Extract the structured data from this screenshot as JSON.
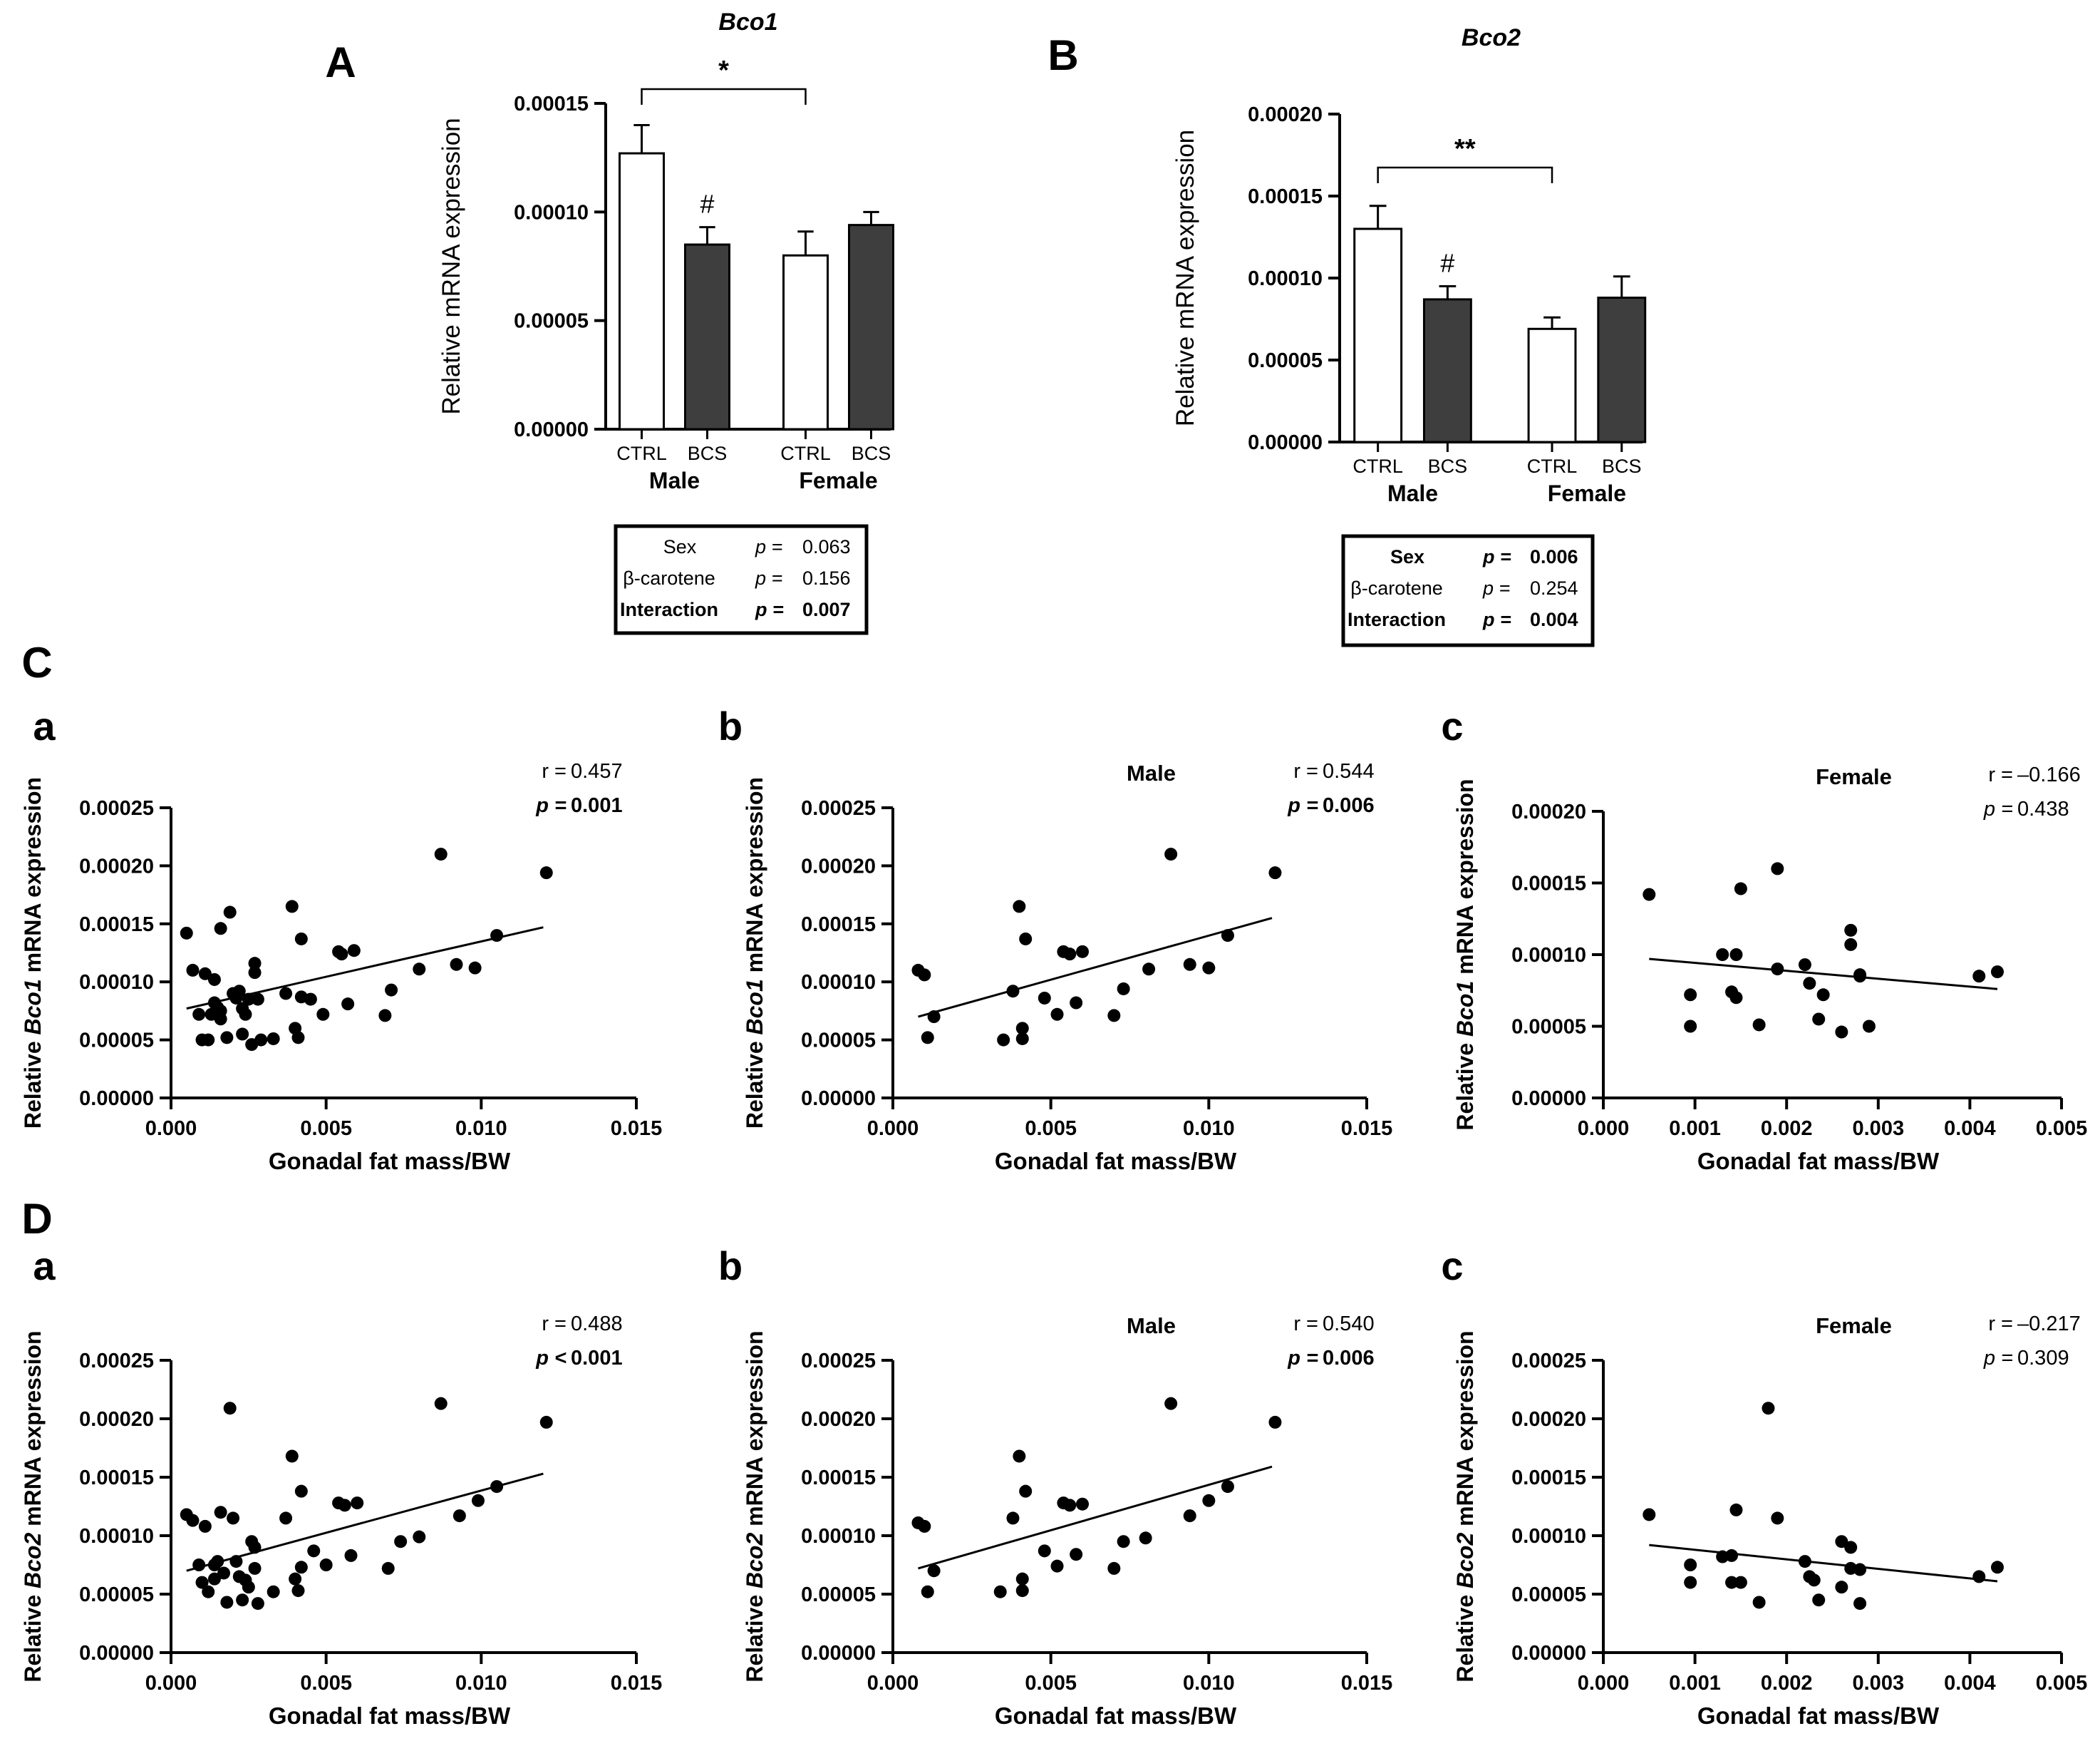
{
  "panel_letters": {
    "A": "A",
    "B": "B",
    "C": "C",
    "D": "D"
  },
  "chart_data": [
    {
      "panel": "A",
      "type": "bar",
      "title": "Bco1",
      "ylabel": "Relative mRNA expression",
      "ylim": [
        0,
        0.00015
      ],
      "yticks": [
        "0.00000",
        "0.00005",
        "0.00010",
        "0.00015"
      ],
      "categories": [
        "CTRL",
        "BCS",
        "CTRL",
        "BCS"
      ],
      "groups": [
        "Male",
        "Female"
      ],
      "values": [
        0.000127,
        8.5e-05,
        8e-05,
        9.4e-05
      ],
      "errors": [
        1.3e-05,
        8e-06,
        1.1e-05,
        6e-06
      ],
      "fills": [
        "white",
        "dark",
        "white",
        "dark"
      ],
      "sig_bracket": {
        "from": 0,
        "to": 2,
        "label": "*"
      },
      "markers": [
        {
          "bar": 1,
          "label": "#"
        }
      ],
      "stats": [
        {
          "label": "Sex",
          "p": "p = ",
          "value": "0.063",
          "bold": false
        },
        {
          "label": "β-carotene",
          "p": "p = ",
          "value": "0.156",
          "bold": false
        },
        {
          "label": "Interaction",
          "p": "p = ",
          "value": "0.007",
          "bold": true
        }
      ]
    },
    {
      "panel": "B",
      "type": "bar",
      "title": "Bco2",
      "ylabel": "Relative mRNA expression",
      "ylim": [
        0,
        0.0002
      ],
      "yticks": [
        "0.00000",
        "0.00005",
        "0.00010",
        "0.00015",
        "0.00020"
      ],
      "categories": [
        "CTRL",
        "BCS",
        "CTRL",
        "BCS"
      ],
      "groups": [
        "Male",
        "Female"
      ],
      "values": [
        0.00013,
        8.7e-05,
        6.9e-05,
        8.8e-05
      ],
      "errors": [
        1.4e-05,
        8e-06,
        7e-06,
        1.3e-05
      ],
      "fills": [
        "white",
        "dark",
        "white",
        "dark"
      ],
      "sig_bracket": {
        "from": 0,
        "to": 2,
        "label": "**"
      },
      "markers": [
        {
          "bar": 1,
          "label": "#"
        }
      ],
      "stats": [
        {
          "label": "Sex",
          "p": "p = ",
          "value": "0.006",
          "bold": true
        },
        {
          "label": "β-carotene",
          "p": "p = ",
          "value": "0.254",
          "bold": false
        },
        {
          "label": "Interaction",
          "p": "p = ",
          "value": "0.004",
          "bold": true
        }
      ]
    },
    {
      "panel": "C-a",
      "type": "scatter",
      "gene": "Bco1",
      "title": "",
      "ylabel_prefix": "Relative ",
      "ylabel_suffix": " mRNA expression",
      "xlabel": "Gonadal fat mass/BW",
      "xlim": [
        0,
        0.015
      ],
      "ylim": [
        0,
        0.00025
      ],
      "xticks": [
        "0.000",
        "0.005",
        "0.010",
        "0.015"
      ],
      "yticks": [
        "0.00000",
        "0.00005",
        "0.00010",
        "0.00015",
        "0.00020",
        "0.00025"
      ],
      "r_label": "r = ",
      "r": "0.457",
      "p_label": "p = ",
      "p": "0.001",
      "p_bold": true,
      "fit": {
        "x": [
          0.0005,
          0.012
        ],
        "y": [
          7.7e-05,
          0.000147
        ]
      },
      "points": [
        [
          0.0005,
          0.000142
        ],
        [
          0.0007,
          0.00011
        ],
        [
          0.0009,
          7.2e-05
        ],
        [
          0.001,
          5e-05
        ],
        [
          0.0011,
          0.000107
        ],
        [
          0.0012,
          5e-05
        ],
        [
          0.0013,
          7.2e-05
        ],
        [
          0.0014,
          0.000102
        ],
        [
          0.0014,
          8.2e-05
        ],
        [
          0.0015,
          7.8e-05
        ],
        [
          0.0016,
          0.000146
        ],
        [
          0.0016,
          6.8e-05
        ],
        [
          0.0016,
          7.5e-05
        ],
        [
          0.0018,
          5.2e-05
        ],
        [
          0.0019,
          0.00016
        ],
        [
          0.002,
          9e-05
        ],
        [
          0.0021,
          8.6e-05
        ],
        [
          0.0022,
          9.2e-05
        ],
        [
          0.0023,
          7.7e-05
        ],
        [
          0.0023,
          5.5e-05
        ],
        [
          0.0024,
          7.2e-05
        ],
        [
          0.0025,
          8.5e-05
        ],
        [
          0.0026,
          4.6e-05
        ],
        [
          0.0027,
          0.000116
        ],
        [
          0.0027,
          0.000108
        ],
        [
          0.0028,
          8.5e-05
        ],
        [
          0.0029,
          5e-05
        ],
        [
          0.0033,
          5.1e-05
        ],
        [
          0.0037,
          9e-05
        ],
        [
          0.0039,
          0.000165
        ],
        [
          0.004,
          6e-05
        ],
        [
          0.0041,
          5.2e-05
        ],
        [
          0.0042,
          0.000137
        ],
        [
          0.0042,
          8.7e-05
        ],
        [
          0.0045,
          8.5e-05
        ],
        [
          0.0049,
          7.2e-05
        ],
        [
          0.0054,
          0.000126
        ],
        [
          0.0055,
          0.000124
        ],
        [
          0.0057,
          8.1e-05
        ],
        [
          0.0059,
          0.000127
        ],
        [
          0.0069,
          7.1e-05
        ],
        [
          0.0071,
          9.3e-05
        ],
        [
          0.008,
          0.000111
        ],
        [
          0.0087,
          0.00021
        ],
        [
          0.0092,
          0.000115
        ],
        [
          0.0098,
          0.000112
        ],
        [
          0.0105,
          0.00014
        ],
        [
          0.0121,
          0.000194
        ]
      ]
    },
    {
      "panel": "C-b",
      "type": "scatter",
      "gene": "Bco1",
      "title": "Male",
      "ylabel_prefix": "Relative ",
      "ylabel_suffix": " mRNA expression",
      "xlabel": "Gonadal fat mass/BW",
      "xlim": [
        0,
        0.015
      ],
      "ylim": [
        0,
        0.00025
      ],
      "xticks": [
        "0.000",
        "0.005",
        "0.010",
        "0.015"
      ],
      "yticks": [
        "0.00000",
        "0.00005",
        "0.00010",
        "0.00015",
        "0.00020",
        "0.00025"
      ],
      "r_label": "r = ",
      "r": "0.544",
      "p_label": "p = ",
      "p": "0.006",
      "p_bold": true,
      "fit": {
        "x": [
          0.0008,
          0.012
        ],
        "y": [
          7e-05,
          0.000155
        ]
      },
      "points": [
        [
          0.0008,
          0.00011
        ],
        [
          0.001,
          0.000106
        ],
        [
          0.0013,
          7e-05
        ],
        [
          0.0011,
          5.2e-05
        ],
        [
          0.0035,
          5e-05
        ],
        [
          0.0038,
          9.2e-05
        ],
        [
          0.004,
          0.000165
        ],
        [
          0.0041,
          6e-05
        ],
        [
          0.0041,
          5.1e-05
        ],
        [
          0.0042,
          0.000137
        ],
        [
          0.0048,
          8.6e-05
        ],
        [
          0.0052,
          7.2e-05
        ],
        [
          0.0054,
          0.000126
        ],
        [
          0.0056,
          0.000124
        ],
        [
          0.0058,
          8.2e-05
        ],
        [
          0.006,
          0.000126
        ],
        [
          0.007,
          7.1e-05
        ],
        [
          0.0073,
          9.4e-05
        ],
        [
          0.0081,
          0.000111
        ],
        [
          0.0088,
          0.00021
        ],
        [
          0.0094,
          0.000115
        ],
        [
          0.01,
          0.000112
        ],
        [
          0.0106,
          0.00014
        ],
        [
          0.0121,
          0.000194
        ]
      ]
    },
    {
      "panel": "C-c",
      "type": "scatter",
      "gene": "Bco1",
      "title": "Female",
      "ylabel_prefix": "Relative ",
      "ylabel_suffix": " mRNA expression",
      "xlabel": "Gonadal fat mass/BW",
      "xlim": [
        0,
        0.005
      ],
      "ylim": [
        0,
        0.0002
      ],
      "xticks": [
        "0.000",
        "0.001",
        "0.002",
        "0.003",
        "0.004",
        "0.005"
      ],
      "yticks": [
        "0.00000",
        "0.00005",
        "0.00010",
        "0.00015",
        "0.00020"
      ],
      "r_label": "r = ",
      "r": "–0.166",
      "p_label": "p = ",
      "p": "0.438",
      "p_bold": false,
      "fit": {
        "x": [
          0.0005,
          0.0043
        ],
        "y": [
          9.7e-05,
          7.6e-05
        ]
      },
      "points": [
        [
          0.0005,
          0.000142
        ],
        [
          0.00095,
          7.2e-05
        ],
        [
          0.00095,
          5e-05
        ],
        [
          0.0013,
          0.0001
        ],
        [
          0.0014,
          7.4e-05
        ],
        [
          0.00145,
          7e-05
        ],
        [
          0.0015,
          0.000146
        ],
        [
          0.00145,
          0.0001
        ],
        [
          0.0017,
          5.1e-05
        ],
        [
          0.0019,
          9e-05
        ],
        [
          0.0019,
          0.00016
        ],
        [
          0.0022,
          9.3e-05
        ],
        [
          0.00225,
          8e-05
        ],
        [
          0.00235,
          5.5e-05
        ],
        [
          0.0024,
          7.2e-05
        ],
        [
          0.0026,
          4.6e-05
        ],
        [
          0.0027,
          0.000117
        ],
        [
          0.0027,
          0.000107
        ],
        [
          0.0028,
          8.6e-05
        ],
        [
          0.0028,
          8.5e-05
        ],
        [
          0.0029,
          5e-05
        ],
        [
          0.0041,
          8.5e-05
        ],
        [
          0.0043,
          8.8e-05
        ]
      ]
    },
    {
      "panel": "D-a",
      "type": "scatter",
      "gene": "Bco2",
      "title": "",
      "ylabel_prefix": "Relative ",
      "ylabel_suffix": " mRNA expression",
      "xlabel": "Gonadal fat mass/BW",
      "xlim": [
        0,
        0.015
      ],
      "ylim": [
        0,
        0.00025
      ],
      "xticks": [
        "0.000",
        "0.005",
        "0.010",
        "0.015"
      ],
      "yticks": [
        "0.00000",
        "0.00005",
        "0.00010",
        "0.00015",
        "0.00020",
        "0.00025"
      ],
      "r_label": "r = ",
      "r": "0.488",
      "p_label": "p < ",
      "p": "0.001",
      "p_bold": true,
      "fit": {
        "x": [
          0.0005,
          0.012
        ],
        "y": [
          7e-05,
          0.000153
        ]
      },
      "points": [
        [
          0.0005,
          0.000118
        ],
        [
          0.0007,
          0.000113
        ],
        [
          0.0009,
          7.5e-05
        ],
        [
          0.001,
          6e-05
        ],
        [
          0.0011,
          0.000108
        ],
        [
          0.0012,
          5.2e-05
        ],
        [
          0.0014,
          7.5e-05
        ],
        [
          0.0014,
          6.3e-05
        ],
        [
          0.0015,
          7.8e-05
        ],
        [
          0.0016,
          0.00012
        ],
        [
          0.0017,
          6.8e-05
        ],
        [
          0.0018,
          4.3e-05
        ],
        [
          0.0019,
          0.000209
        ],
        [
          0.002,
          0.000115
        ],
        [
          0.0021,
          7.8e-05
        ],
        [
          0.0022,
          6.5e-05
        ],
        [
          0.0023,
          4.5e-05
        ],
        [
          0.0024,
          6.2e-05
        ],
        [
          0.0025,
          5.6e-05
        ],
        [
          0.0026,
          9.5e-05
        ],
        [
          0.0027,
          9e-05
        ],
        [
          0.0027,
          7.2e-05
        ],
        [
          0.0028,
          4.2e-05
        ],
        [
          0.0033,
          5.2e-05
        ],
        [
          0.0037,
          0.000115
        ],
        [
          0.0039,
          0.000168
        ],
        [
          0.004,
          6.3e-05
        ],
        [
          0.0041,
          5.3e-05
        ],
        [
          0.0042,
          0.000138
        ],
        [
          0.0042,
          7.3e-05
        ],
        [
          0.0046,
          8.7e-05
        ],
        [
          0.005,
          7.5e-05
        ],
        [
          0.0054,
          0.000128
        ],
        [
          0.0056,
          0.000126
        ],
        [
          0.0058,
          8.3e-05
        ],
        [
          0.006,
          0.000128
        ],
        [
          0.007,
          7.2e-05
        ],
        [
          0.0074,
          9.5e-05
        ],
        [
          0.008,
          9.9e-05
        ],
        [
          0.0087,
          0.000213
        ],
        [
          0.0093,
          0.000117
        ],
        [
          0.0099,
          0.00013
        ],
        [
          0.0105,
          0.000142
        ],
        [
          0.0121,
          0.000197
        ]
      ]
    },
    {
      "panel": "D-b",
      "type": "scatter",
      "gene": "Bco2",
      "title": "Male",
      "ylabel_prefix": "Relative ",
      "ylabel_suffix": " mRNA expression",
      "xlabel": "Gonadal fat mass/BW",
      "xlim": [
        0,
        0.015
      ],
      "ylim": [
        0,
        0.00025
      ],
      "xticks": [
        "0.000",
        "0.005",
        "0.010",
        "0.015"
      ],
      "yticks": [
        "0.00000",
        "0.00005",
        "0.00010",
        "0.00015",
        "0.00020",
        "0.00025"
      ],
      "r_label": "r = ",
      "r": "0.540",
      "p_label": "p = ",
      "p": "0.006",
      "p_bold": true,
      "fit": {
        "x": [
          0.0008,
          0.012
        ],
        "y": [
          7.2e-05,
          0.000159
        ]
      },
      "points": [
        [
          0.0008,
          0.000111
        ],
        [
          0.001,
          0.000108
        ],
        [
          0.0013,
          7e-05
        ],
        [
          0.0011,
          5.2e-05
        ],
        [
          0.0034,
          5.2e-05
        ],
        [
          0.0038,
          0.000115
        ],
        [
          0.004,
          0.000168
        ],
        [
          0.0041,
          6.3e-05
        ],
        [
          0.0041,
          5.3e-05
        ],
        [
          0.0042,
          0.000138
        ],
        [
          0.0048,
          8.7e-05
        ],
        [
          0.0052,
          7.4e-05
        ],
        [
          0.0054,
          0.000128
        ],
        [
          0.0056,
          0.000126
        ],
        [
          0.0058,
          8.4e-05
        ],
        [
          0.006,
          0.000127
        ],
        [
          0.007,
          7.2e-05
        ],
        [
          0.0073,
          9.5e-05
        ],
        [
          0.008,
          9.8e-05
        ],
        [
          0.0088,
          0.000213
        ],
        [
          0.0094,
          0.000117
        ],
        [
          0.01,
          0.00013
        ],
        [
          0.0106,
          0.000142
        ],
        [
          0.0121,
          0.000197
        ]
      ]
    },
    {
      "panel": "D-c",
      "type": "scatter",
      "gene": "Bco2",
      "title": "Female",
      "ylabel_prefix": "Relative ",
      "ylabel_suffix": " mRNA expression",
      "xlabel": "Gonadal fat mass/BW",
      "xlim": [
        0,
        0.005
      ],
      "ylim": [
        0,
        0.00025
      ],
      "xticks": [
        "0.000",
        "0.001",
        "0.002",
        "0.003",
        "0.004",
        "0.005"
      ],
      "yticks": [
        "0.00000",
        "0.00005",
        "0.00010",
        "0.00015",
        "0.00020",
        "0.00025"
      ],
      "r_label": "r = ",
      "r": "–0.217",
      "p_label": "p = ",
      "p": "0.309",
      "p_bold": false,
      "fit": {
        "x": [
          0.0005,
          0.0043
        ],
        "y": [
          9.2e-05,
          6.1e-05
        ]
      },
      "points": [
        [
          0.0005,
          0.000118
        ],
        [
          0.00095,
          7.5e-05
        ],
        [
          0.00095,
          6e-05
        ],
        [
          0.0013,
          8.2e-05
        ],
        [
          0.0014,
          8.3e-05
        ],
        [
          0.00145,
          0.000122
        ],
        [
          0.0014,
          6e-05
        ],
        [
          0.0015,
          6e-05
        ],
        [
          0.0017,
          4.3e-05
        ],
        [
          0.0018,
          0.000209
        ],
        [
          0.0019,
          0.000115
        ],
        [
          0.0022,
          7.8e-05
        ],
        [
          0.00225,
          6.5e-05
        ],
        [
          0.0023,
          6.2e-05
        ],
        [
          0.00235,
          4.5e-05
        ],
        [
          0.0026,
          5.6e-05
        ],
        [
          0.0026,
          9.5e-05
        ],
        [
          0.0027,
          9e-05
        ],
        [
          0.0027,
          7.2e-05
        ],
        [
          0.0028,
          7.1e-05
        ],
        [
          0.0028,
          4.2e-05
        ],
        [
          0.0041,
          6.5e-05
        ],
        [
          0.0043,
          7.3e-05
        ]
      ]
    }
  ]
}
